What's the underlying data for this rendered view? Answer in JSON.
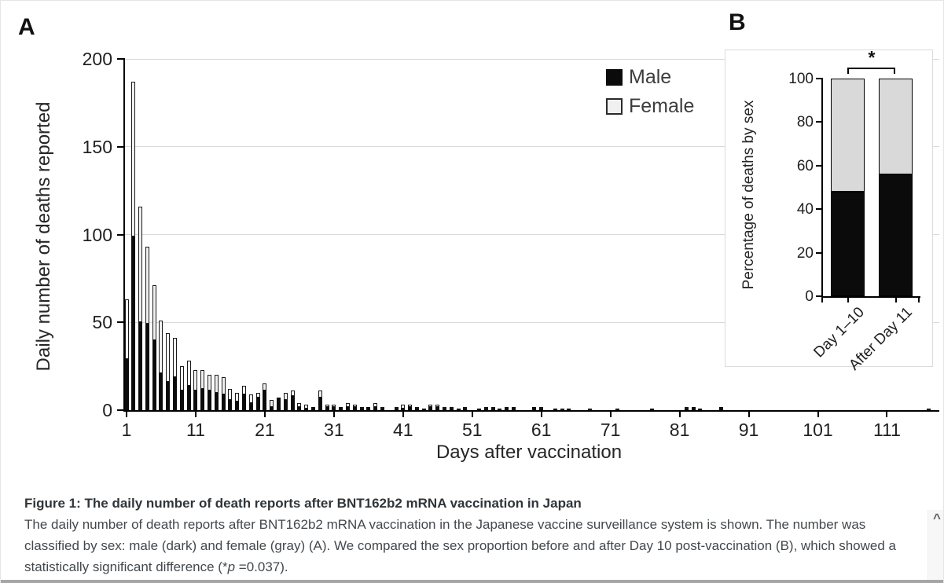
{
  "panel_a": {
    "label": "A",
    "y_axis_title": "Daily number of deaths reported",
    "x_axis_title": "Days after vaccination",
    "legend": {
      "male": "Male",
      "female": "Female"
    }
  },
  "panel_b": {
    "label": "B",
    "y_axis_title": "Percentage of deaths by sex",
    "significance": "*"
  },
  "chart_data": [
    {
      "type": "bar",
      "stacked": true,
      "panel": "A",
      "xlabel": "Days after vaccination",
      "ylabel": "Daily number of deaths reported",
      "ylim": [
        0,
        200
      ],
      "y_ticks": [
        0,
        50,
        100,
        150,
        200
      ],
      "x_ticks": [
        1,
        11,
        21,
        31,
        41,
        51,
        61,
        71,
        81,
        91,
        101,
        111
      ],
      "x_first_day": 1,
      "x_last_day": 117,
      "grid": true,
      "legend_position": "top-right-inside",
      "series": [
        {
          "name": "Male",
          "color": "#0b0b0b",
          "values": [
            29,
            99,
            50,
            49,
            40,
            21,
            16,
            19,
            11,
            14,
            11,
            12,
            11,
            10,
            9,
            6,
            5,
            9,
            4,
            7,
            11,
            2,
            7,
            6,
            8,
            2,
            1,
            2,
            7,
            2,
            2,
            2,
            2,
            2,
            1,
            2,
            2,
            1,
            0,
            1,
            1,
            2,
            1,
            1,
            2,
            2,
            1,
            1,
            1,
            1,
            0,
            1,
            1,
            1,
            1,
            2,
            2,
            0,
            0,
            2,
            1,
            0,
            1,
            0,
            1,
            0,
            0,
            0,
            0,
            0,
            0,
            0,
            0,
            0,
            0,
            0,
            1,
            0,
            0,
            0,
            0,
            1,
            2,
            1,
            0,
            0,
            2,
            0,
            0,
            0,
            0,
            0,
            0,
            0,
            0,
            0,
            0,
            0,
            0,
            0,
            0,
            0,
            0,
            0,
            0,
            0,
            0,
            0,
            0,
            0,
            0,
            0,
            0,
            0,
            0,
            0,
            0
          ]
        },
        {
          "name": "Female",
          "color": "#f0f0f0",
          "values": [
            34,
            88,
            66,
            44,
            31,
            30,
            28,
            22,
            14,
            14,
            12,
            11,
            9,
            10,
            10,
            6,
            5,
            5,
            5,
            3,
            4,
            4,
            0,
            4,
            3,
            2,
            2,
            0,
            4,
            1,
            1,
            0,
            2,
            1,
            1,
            0,
            2,
            1,
            0,
            1,
            2,
            1,
            1,
            0,
            1,
            1,
            1,
            1,
            0,
            1,
            0,
            0,
            1,
            1,
            0,
            0,
            0,
            0,
            0,
            0,
            1,
            0,
            0,
            1,
            0,
            0,
            0,
            1,
            0,
            0,
            0,
            1,
            0,
            0,
            0,
            0,
            0,
            0,
            0,
            0,
            0,
            1,
            0,
            0,
            0,
            0,
            0,
            0,
            0,
            0,
            0,
            0,
            0,
            0,
            0,
            0,
            0,
            0,
            0,
            0,
            0,
            0,
            0,
            0,
            0,
            0,
            0,
            0,
            0,
            0,
            0,
            0,
            0,
            0,
            0,
            0,
            1
          ]
        }
      ]
    },
    {
      "type": "bar",
      "stacked": true,
      "percent": true,
      "panel": "B",
      "categories": [
        "Day 1–10",
        "After Day 11"
      ],
      "ylabel": "Percentage of deaths by sex",
      "ylim": [
        0,
        100
      ],
      "y_ticks": [
        0,
        20,
        40,
        60,
        80,
        100
      ],
      "series": [
        {
          "name": "Male",
          "color": "#0b0b0b",
          "values": [
            48,
            56
          ]
        },
        {
          "name": "Female",
          "color": "#d9d9d9",
          "values": [
            52,
            44
          ]
        }
      ],
      "annotation": {
        "text": "*",
        "p_value": "p =0.037"
      }
    }
  ],
  "caption": {
    "title": "Figure 1: The daily number of death reports after BNT162b2 mRNA vaccination in Japan",
    "body_1": "The daily number of death reports after BNT162b2 mRNA vaccination in the Japanese vaccine surveillance system is shown. The number was classified by sex: male (dark) and female (gray) (A). We compared the sex proportion before and after Day 10 post-vaccination (B), which showed a statistically significant difference (*",
    "body_italic": "p",
    "body_2": " =0.037)."
  },
  "scrollbar": {
    "up_arrow": "^"
  },
  "colors": {
    "male": "#0b0b0b",
    "female_panel_a": "#f0f0f0",
    "female_panel_b": "#d9d9d9",
    "gridline": "#d9d9d9",
    "axis": "#000000",
    "caption_text": "#43484c",
    "bottom_bar": "#a6a6a6"
  }
}
